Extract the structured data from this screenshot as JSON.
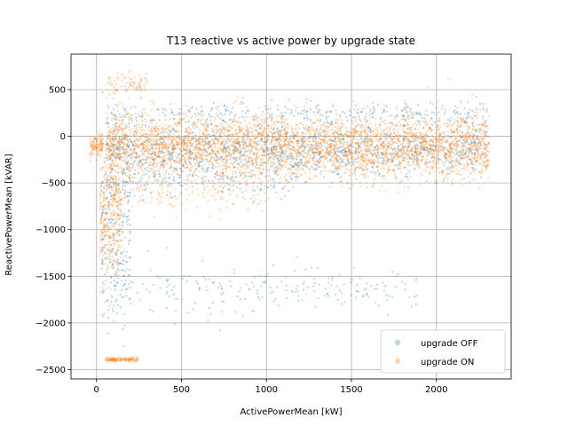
{
  "chart_data": {
    "type": "scatter",
    "title": "T13 reactive vs active power by upgrade state",
    "xlabel": "ActivePowerMean [kW]",
    "ylabel": "ReactivePowerMean [kVAR]",
    "xlim": [
      -150,
      2440
    ],
    "ylim": [
      -2600,
      880
    ],
    "xticks": [
      0,
      500,
      1000,
      1500,
      2000
    ],
    "yticks": [
      -2500,
      -2000,
      -1500,
      -1000,
      -500,
      0,
      500
    ],
    "grid": true,
    "legend_position": "lower-right",
    "series": [
      {
        "name": "upgrade OFF",
        "color": "#1f77b4",
        "point_clusters": [
          {
            "x_range": [
              60,
              2310
            ],
            "y_center": -150,
            "y_spread": 260,
            "count": 1400
          },
          {
            "x_range": [
              60,
              2310
            ],
            "y_center": 250,
            "y_spread": 120,
            "count": 300
          },
          {
            "x_range": [
              30,
              200
            ],
            "y_center": -1000,
            "y_spread": 900,
            "count": 260
          },
          {
            "x_range": [
              80,
              1900
            ],
            "y_center": -1650,
            "y_spread": 230,
            "count": 220
          },
          {
            "x_range": [
              60,
              1200
            ],
            "y_center": -500,
            "y_spread": 150,
            "count": 150
          }
        ]
      },
      {
        "name": "upgrade ON",
        "color": "#ff7f0e",
        "point_clusters": [
          {
            "x_range": [
              60,
              2310
            ],
            "y_center": -100,
            "y_spread": 300,
            "count": 3800
          },
          {
            "x_range": [
              20,
              150
            ],
            "y_center": -800,
            "y_spread": 700,
            "count": 350
          },
          {
            "x_range": [
              50,
              250
            ],
            "y_center": -2390,
            "y_spread": 20,
            "count": 140
          },
          {
            "x_range": [
              60,
              1000
            ],
            "y_center": -600,
            "y_spread": 200,
            "count": 200
          },
          {
            "x_range": [
              -40,
              40
            ],
            "y_center": -100,
            "y_spread": 100,
            "count": 120
          },
          {
            "x_range": [
              60,
              300
            ],
            "y_center": 550,
            "y_spread": 100,
            "count": 80
          }
        ]
      }
    ]
  }
}
